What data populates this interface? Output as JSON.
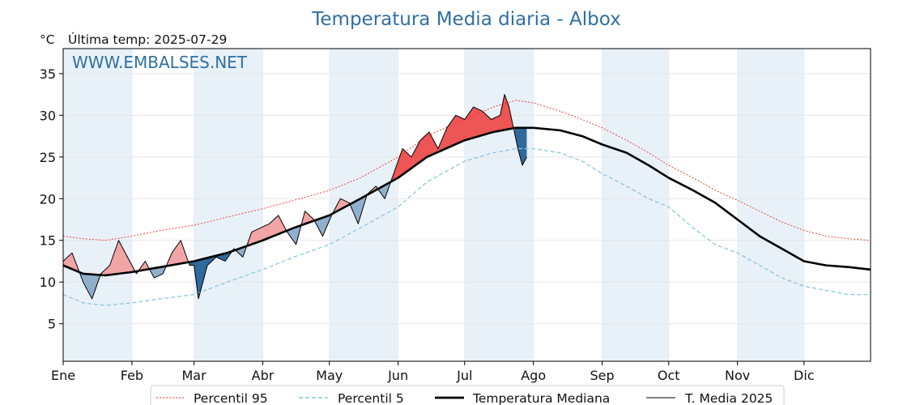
{
  "header": {
    "title": "Temperatura Media diaria - Albox",
    "unit": "°C",
    "last_temp": "Última temp: 2025-07-29",
    "watermark": "WWW.EMBALSES.NET"
  },
  "colors": {
    "p95": "#e8332a",
    "p5": "#8cc7df",
    "median": "#000000",
    "current": "#000000",
    "above_fill": "#f2a5a5",
    "above_fill_strong": "#ee5555",
    "below_fill": "#8fb0cc",
    "below_fill_strong": "#2e6a9e",
    "shade": "#e9f1f8",
    "title": "#2f6fa3"
  },
  "chart_data": {
    "type": "line",
    "title": "Temperatura Media diaria - Albox",
    "ylabel": "°C",
    "xlabel": "",
    "x_units": "day of year",
    "xlim": [
      1,
      365
    ],
    "ylim": [
      0.5,
      38
    ],
    "yticks": [
      5,
      10,
      15,
      20,
      25,
      30,
      35
    ],
    "grid": true,
    "legend_position": "bottom",
    "month_ticks": [
      {
        "label": "Ene",
        "day": 1
      },
      {
        "label": "Feb",
        "day": 32
      },
      {
        "label": "Mar",
        "day": 60
      },
      {
        "label": "Abr",
        "day": 91
      },
      {
        "label": "May",
        "day": 121
      },
      {
        "label": "Jun",
        "day": 152
      },
      {
        "label": "Jul",
        "day": 182
      },
      {
        "label": "Ago",
        "day": 213
      },
      {
        "label": "Sep",
        "day": 244
      },
      {
        "label": "Oct",
        "day": 274
      },
      {
        "label": "Nov",
        "day": 305
      },
      {
        "label": "Dic",
        "day": 335
      }
    ],
    "shaded_months": [
      [
        1,
        32
      ],
      [
        60,
        91
      ],
      [
        121,
        152
      ],
      [
        182,
        213
      ],
      [
        244,
        274
      ],
      [
        305,
        335
      ]
    ],
    "series": [
      {
        "name": "Percentil 95",
        "style": "thin-dotted-red",
        "x": [
          1,
          10,
          20,
          32,
          45,
          60,
          75,
          91,
          105,
          121,
          135,
          152,
          165,
          182,
          195,
          205,
          213,
          225,
          235,
          244,
          255,
          265,
          274,
          285,
          295,
          305,
          315,
          325,
          335,
          345,
          355,
          365
        ],
        "values": [
          15.5,
          15.2,
          15.0,
          15.5,
          16.2,
          16.8,
          17.8,
          18.8,
          19.8,
          21.0,
          22.5,
          25.0,
          27.5,
          29.5,
          31.0,
          31.8,
          31.5,
          30.5,
          29.5,
          28.5,
          27.0,
          25.5,
          24.0,
          22.5,
          21.0,
          19.8,
          18.5,
          17.2,
          16.2,
          15.5,
          15.2,
          15.0
        ]
      },
      {
        "name": "Percentil 5",
        "style": "dashed-lightblue",
        "x": [
          1,
          10,
          20,
          32,
          45,
          60,
          75,
          91,
          105,
          121,
          135,
          152,
          165,
          182,
          195,
          205,
          213,
          225,
          235,
          244,
          255,
          265,
          274,
          285,
          295,
          305,
          315,
          325,
          335,
          345,
          355,
          365
        ],
        "values": [
          8.5,
          7.5,
          7.2,
          7.5,
          8.0,
          8.5,
          10.0,
          11.5,
          13.0,
          14.5,
          16.5,
          19.0,
          22.0,
          24.5,
          25.5,
          26.0,
          26.0,
          25.5,
          24.5,
          23.0,
          21.5,
          20.0,
          19.0,
          16.5,
          14.5,
          13.5,
          12.0,
          10.5,
          9.5,
          9.0,
          8.5,
          8.5
        ]
      },
      {
        "name": "Temperatura Mediana",
        "style": "thick-black",
        "x": [
          1,
          10,
          20,
          32,
          45,
          60,
          75,
          91,
          105,
          121,
          135,
          152,
          165,
          182,
          195,
          205,
          213,
          225,
          235,
          244,
          255,
          265,
          274,
          285,
          295,
          305,
          315,
          325,
          335,
          345,
          355,
          365
        ],
        "values": [
          12.0,
          11.0,
          10.8,
          11.2,
          11.8,
          12.5,
          13.5,
          15.0,
          16.5,
          18.0,
          20.0,
          22.5,
          25.0,
          27.0,
          28.0,
          28.5,
          28.5,
          28.2,
          27.5,
          26.5,
          25.5,
          24.0,
          22.5,
          21.0,
          19.5,
          17.5,
          15.5,
          14.0,
          12.5,
          12.0,
          11.8,
          11.5
        ]
      },
      {
        "name": "T. Media 2025",
        "style": "thin-black",
        "x": [
          1,
          5,
          10,
          14,
          18,
          22,
          26,
          30,
          34,
          38,
          42,
          46,
          50,
          54,
          58,
          60,
          62,
          66,
          70,
          74,
          78,
          82,
          86,
          90,
          94,
          98,
          102,
          106,
          110,
          114,
          118,
          122,
          126,
          130,
          134,
          138,
          142,
          146,
          150,
          154,
          158,
          162,
          166,
          170,
          174,
          178,
          182,
          186,
          190,
          194,
          198,
          200,
          202,
          204,
          206,
          208,
          210
        ],
        "values": [
          12.5,
          13.5,
          10.0,
          8.0,
          11.0,
          12.0,
          15.0,
          13.0,
          11.0,
          12.5,
          10.5,
          11.0,
          13.5,
          15.0,
          12.0,
          12.0,
          8.0,
          12.0,
          13.0,
          12.5,
          14.0,
          13.0,
          16.0,
          16.5,
          17.0,
          18.0,
          16.0,
          14.5,
          18.5,
          17.5,
          15.5,
          18.0,
          20.0,
          19.5,
          17.0,
          20.5,
          21.5,
          20.0,
          23.0,
          26.0,
          25.0,
          27.0,
          28.0,
          26.0,
          28.5,
          30.0,
          29.5,
          31.0,
          30.5,
          29.5,
          30.0,
          32.5,
          31.0,
          28.5,
          26.0,
          24.0,
          25.0
        ]
      }
    ]
  },
  "legend": {
    "items": [
      {
        "label": "Percentil 95"
      },
      {
        "label": "Percentil 5"
      },
      {
        "label": "Temperatura Mediana"
      },
      {
        "label": "T. Media 2025"
      }
    ]
  }
}
